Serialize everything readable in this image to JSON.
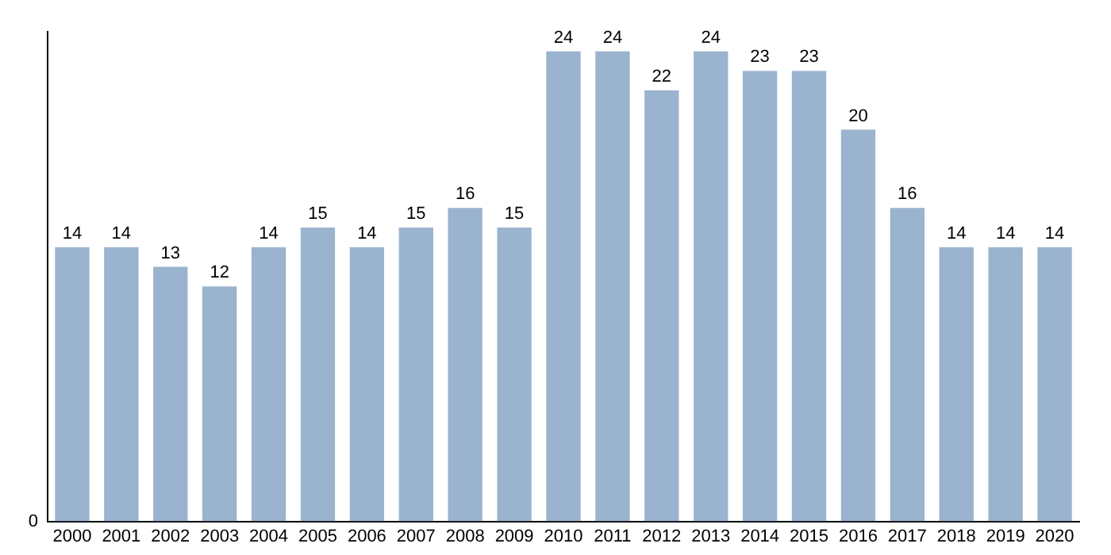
{
  "chart_data": {
    "type": "bar",
    "categories": [
      "2000",
      "2001",
      "2002",
      "2003",
      "2004",
      "2005",
      "2006",
      "2007",
      "2008",
      "2009",
      "2010",
      "2011",
      "2012",
      "2013",
      "2014",
      "2015",
      "2016",
      "2017",
      "2018",
      "2019",
      "2020"
    ],
    "values": [
      14,
      14,
      13,
      12,
      14,
      15,
      14,
      15,
      16,
      15,
      24,
      24,
      22,
      24,
      23,
      23,
      20,
      16,
      14,
      14,
      14
    ],
    "color": "#9ab3cf",
    "data_labels": true,
    "annotations": [
      "0"
    ]
  }
}
